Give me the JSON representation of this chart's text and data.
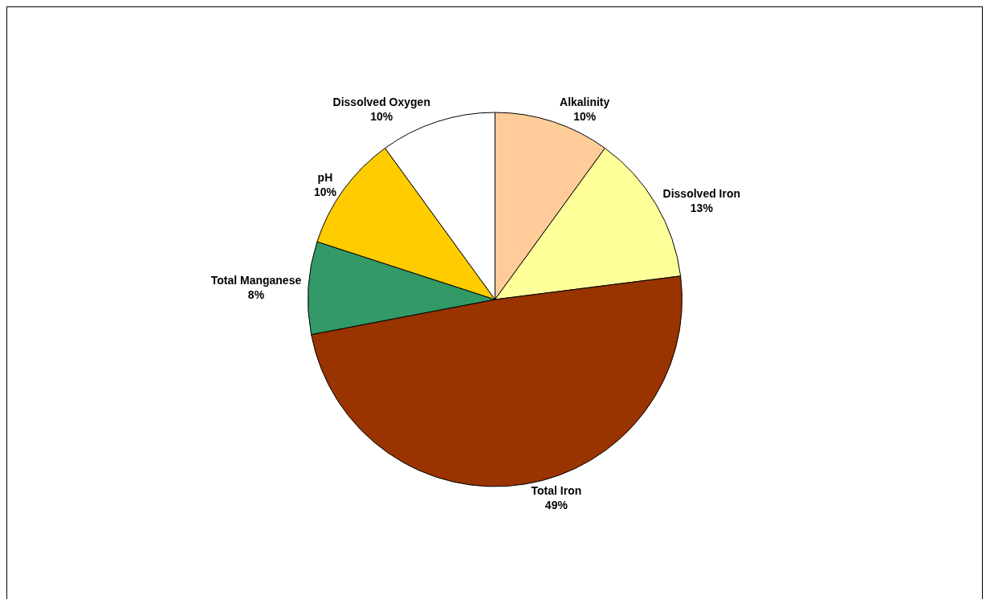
{
  "chart_data": {
    "type": "pie",
    "categories": [
      "Alkalinity",
      "Dissolved Iron",
      "Total Iron",
      "Total Manganese",
      "pH",
      "Dissolved Oxygen"
    ],
    "values": [
      10,
      13,
      49,
      8,
      10,
      10
    ],
    "value_labels": [
      "10%",
      "13%",
      "49%",
      "8%",
      "10%",
      "10%"
    ],
    "colors": [
      "#ffcc99",
      "#ffff99",
      "#993300",
      "#339966",
      "#ffcc00",
      "#ffffff"
    ],
    "legend": false
  }
}
